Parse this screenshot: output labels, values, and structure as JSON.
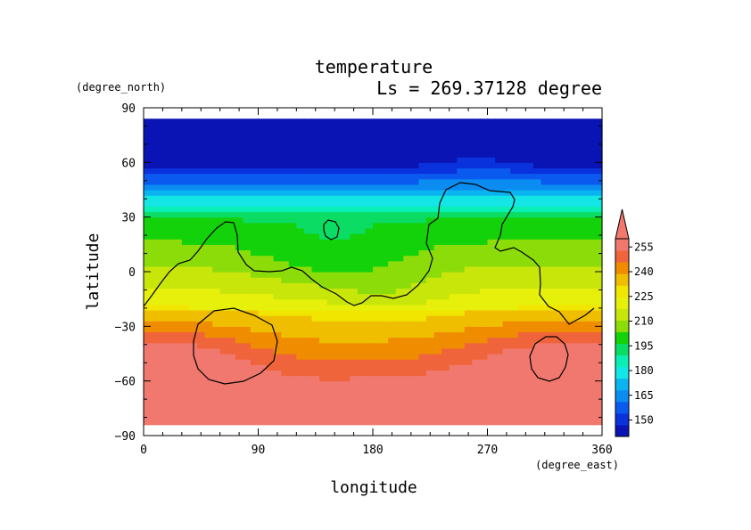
{
  "chart_data": {
    "type": "heatmap",
    "title": "temperature",
    "subtitle": "Ls = 269.37128 degree",
    "xlabel": "longitude",
    "ylabel": "latitude",
    "xunit": "(degree_east)",
    "yunit": "(degree_north)",
    "xlim": [
      0,
      360
    ],
    "ylim": [
      -90,
      90
    ],
    "xticks": [
      0,
      90,
      180,
      270,
      360
    ],
    "yticks": [
      -90,
      -60,
      -30,
      0,
      30,
      60,
      90
    ],
    "colorbar": {
      "levels": [
        150,
        165,
        180,
        195,
        210,
        225,
        240,
        255
      ],
      "labels": [
        "150",
        "165",
        "180",
        "195",
        "210",
        "225",
        "240",
        "255"
      ],
      "min": 140,
      "max": 260,
      "extend": "max"
    },
    "contour_level_note": "black line"
  },
  "colors": {
    "palette": [
      "#0a14b4",
      "#0a32dc",
      "#0a5af0",
      "#0a8cf0",
      "#0ab4f0",
      "#14e6e6",
      "#0af0b4",
      "#0adc64",
      "#14d20a",
      "#8cdc0a",
      "#c8e60a",
      "#e6f00a",
      "#f0e600",
      "#f0be00",
      "#f08c00",
      "#f0643c",
      "#f0786e"
    ],
    "contour": "#000000"
  }
}
